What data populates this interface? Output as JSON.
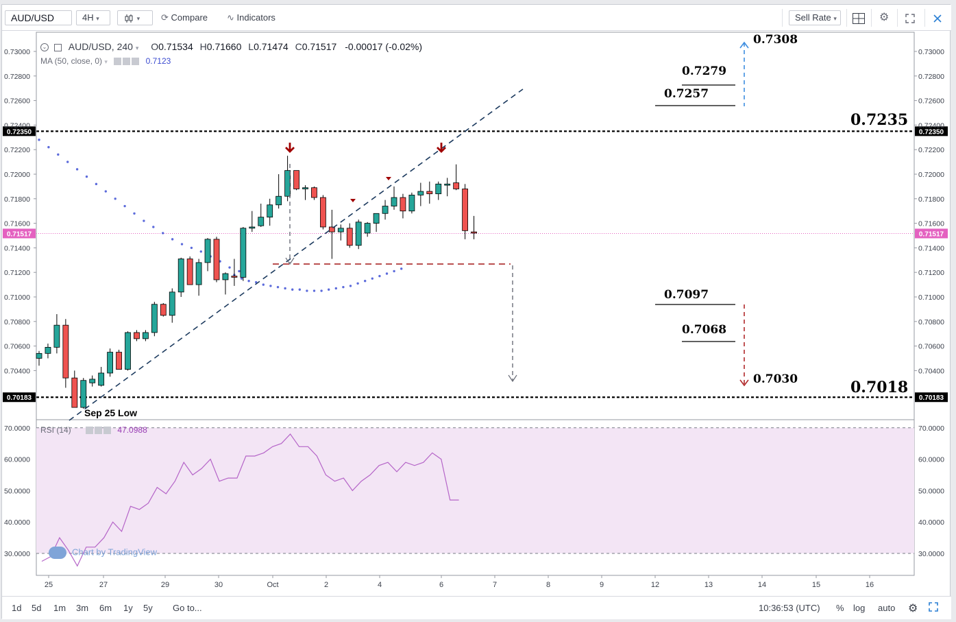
{
  "toolbar": {
    "symbol": "AUD/USD",
    "interval": "4H",
    "compare_label": "Compare",
    "indicators_label": "Indicators",
    "sell_rate_label": "Sell Rate"
  },
  "legend": {
    "title": "AUD/USD, 240",
    "open_label": "O",
    "open": "0.71534",
    "high_label": "H",
    "high": "0.71660",
    "low_label": "L",
    "low": "0.71474",
    "close_label": "C",
    "close": "0.71517",
    "change": "-0.00017 (-0.02%)",
    "ma_label": "MA (50, close, 0)",
    "ma_value": "0.7123",
    "rsi_label": "RSI (14)",
    "rsi_value": "47.0988"
  },
  "annotations": {
    "sep25": "Sep 25 Low",
    "l7308": "0.7308",
    "l7279": "0.7279",
    "l7257": "0.7257",
    "l7235": "0.7235",
    "l7097": "0.7097",
    "l7068": "0.7068",
    "l7030": "0.7030",
    "l7018": "0.7018"
  },
  "watermark": "Chart by TradingView",
  "bottombar": {
    "ranges": [
      "1d",
      "5d",
      "1m",
      "3m",
      "6m",
      "1y",
      "5y"
    ],
    "goto": "Go to...",
    "time": "10:36:53 (UTC)",
    "percent": "%",
    "log": "log",
    "auto": "auto"
  },
  "colors": {
    "up": "#26a69a",
    "down": "#ef5350",
    "ma": "#5c6bdb",
    "rsi": "#b565c8",
    "rsi_band": "#f3e5f5",
    "last_price": "#e461c0",
    "arrow_down": "#a00000",
    "arrow_up": "#3d8de0"
  },
  "chart_data": [
    {
      "type": "candlestick",
      "ylim": [
        0.7,
        0.731
      ],
      "yticks": [
        "0.70400",
        "0.70600",
        "0.70800",
        "0.71000",
        "0.71200",
        "0.71400",
        "0.71600",
        "0.71800",
        "0.72000",
        "0.72200",
        "0.72400",
        "0.72600",
        "0.72800",
        "0.73000"
      ],
      "price_tags": [
        "0.72350",
        "0.71517",
        "0.70183"
      ],
      "xticks": [
        "25",
        "27",
        "29",
        "30",
        "Oct",
        "2",
        "4",
        "6",
        "7",
        "8",
        "9",
        "12",
        "13",
        "14",
        "15",
        "16"
      ],
      "candles": [
        [
          0.705,
          0.7056,
          0.7044,
          0.7054
        ],
        [
          0.7054,
          0.7062,
          0.705,
          0.7059
        ],
        [
          0.7059,
          0.7086,
          0.7054,
          0.7077
        ],
        [
          0.7077,
          0.7082,
          0.7026,
          0.7034
        ],
        [
          0.7034,
          0.704,
          0.701,
          0.701
        ],
        [
          0.701,
          0.7034,
          0.7009,
          0.7032
        ],
        [
          0.703,
          0.7036,
          0.7027,
          0.7033
        ],
        [
          0.7028,
          0.7043,
          0.7027,
          0.7038
        ],
        [
          0.7038,
          0.7058,
          0.7035,
          0.7055
        ],
        [
          0.7055,
          0.7057,
          0.7041,
          0.7041
        ],
        [
          0.7041,
          0.7072,
          0.704,
          0.7071
        ],
        [
          0.7071,
          0.7073,
          0.7064,
          0.7066
        ],
        [
          0.7066,
          0.7073,
          0.7064,
          0.7071
        ],
        [
          0.7071,
          0.7096,
          0.7068,
          0.7094
        ],
        [
          0.7094,
          0.7095,
          0.7084,
          0.7085
        ],
        [
          0.7085,
          0.7107,
          0.7079,
          0.7104
        ],
        [
          0.7104,
          0.7132,
          0.71,
          0.7131
        ],
        [
          0.7131,
          0.7133,
          0.711,
          0.711
        ],
        [
          0.711,
          0.7131,
          0.7101,
          0.7128
        ],
        [
          0.7128,
          0.7148,
          0.7121,
          0.7147
        ],
        [
          0.7147,
          0.7149,
          0.7112,
          0.7114
        ],
        [
          0.7114,
          0.712,
          0.7102,
          0.7119
        ],
        [
          0.7117,
          0.7131,
          0.7109,
          0.7116
        ],
        [
          0.7116,
          0.7157,
          0.7113,
          0.7156
        ],
        [
          0.7156,
          0.717,
          0.7153,
          0.7157
        ],
        [
          0.7158,
          0.7176,
          0.7157,
          0.7165
        ],
        [
          0.7165,
          0.718,
          0.7158,
          0.7175
        ],
        [
          0.7175,
          0.72,
          0.7172,
          0.7182
        ],
        [
          0.7182,
          0.7215,
          0.7178,
          0.7203
        ],
        [
          0.7203,
          0.7203,
          0.7187,
          0.7188
        ],
        [
          0.7188,
          0.7191,
          0.7179,
          0.7189
        ],
        [
          0.7189,
          0.719,
          0.7179,
          0.7181
        ],
        [
          0.7181,
          0.7183,
          0.7155,
          0.7157
        ],
        [
          0.7157,
          0.7171,
          0.7131,
          0.7153
        ],
        [
          0.7153,
          0.7159,
          0.7146,
          0.7156
        ],
        [
          0.7156,
          0.716,
          0.714,
          0.7142
        ],
        [
          0.7142,
          0.7163,
          0.7139,
          0.7161
        ],
        [
          0.7152,
          0.7161,
          0.7149,
          0.716
        ],
        [
          0.716,
          0.7168,
          0.7153,
          0.7168
        ],
        [
          0.7168,
          0.7179,
          0.7163,
          0.7174
        ],
        [
          0.7174,
          0.719,
          0.7171,
          0.7181
        ],
        [
          0.7181,
          0.7184,
          0.7164,
          0.717
        ],
        [
          0.717,
          0.7185,
          0.7168,
          0.7183
        ],
        [
          0.7183,
          0.7193,
          0.7174,
          0.7186
        ],
        [
          0.7186,
          0.7194,
          0.7176,
          0.7184
        ],
        [
          0.7184,
          0.7194,
          0.7179,
          0.7192
        ],
        [
          0.7191,
          0.7197,
          0.7182,
          0.7192
        ],
        [
          0.7193,
          0.7208,
          0.7187,
          0.7188
        ],
        [
          0.7188,
          0.7192,
          0.7147,
          0.7154
        ],
        [
          0.7153,
          0.7166,
          0.7147,
          0.7152
        ]
      ],
      "ma": [
        0.7228,
        0.7222,
        0.7216,
        0.721,
        0.7204,
        0.7198,
        0.7192,
        0.7186,
        0.718,
        0.7174,
        0.7168,
        0.7162,
        0.7157,
        0.7152,
        0.7147,
        0.7143,
        0.714,
        0.7137,
        0.7133,
        0.7129,
        0.7124,
        0.7121,
        0.7118,
        0.7115,
        0.7113,
        0.7112,
        0.711,
        0.7109,
        0.7108,
        0.7107,
        0.7106,
        0.7106,
        0.7105,
        0.7105,
        0.7105,
        0.7106,
        0.7107,
        0.7108,
        0.7109,
        0.7111,
        0.7113,
        0.7115,
        0.7117,
        0.7119,
        0.7121,
        0.7123
      ]
    },
    {
      "type": "line",
      "title": "RSI (14)",
      "ylim": [
        25,
        72
      ],
      "yticks": [
        "30.0000",
        "40.0000",
        "50.0000",
        "60.0000",
        "70.0000"
      ],
      "band": [
        30,
        70
      ],
      "values": [
        27.5,
        29,
        35,
        31,
        26,
        32,
        32,
        35,
        40,
        37,
        45,
        44,
        46,
        51,
        49,
        53,
        59,
        55,
        57,
        60,
        53,
        54,
        54,
        61,
        61,
        62,
        64,
        65,
        68,
        64,
        64,
        61,
        55,
        53,
        54,
        50,
        53,
        55,
        58,
        59,
        56,
        59,
        58,
        59,
        62,
        60,
        47,
        47
      ]
    }
  ]
}
